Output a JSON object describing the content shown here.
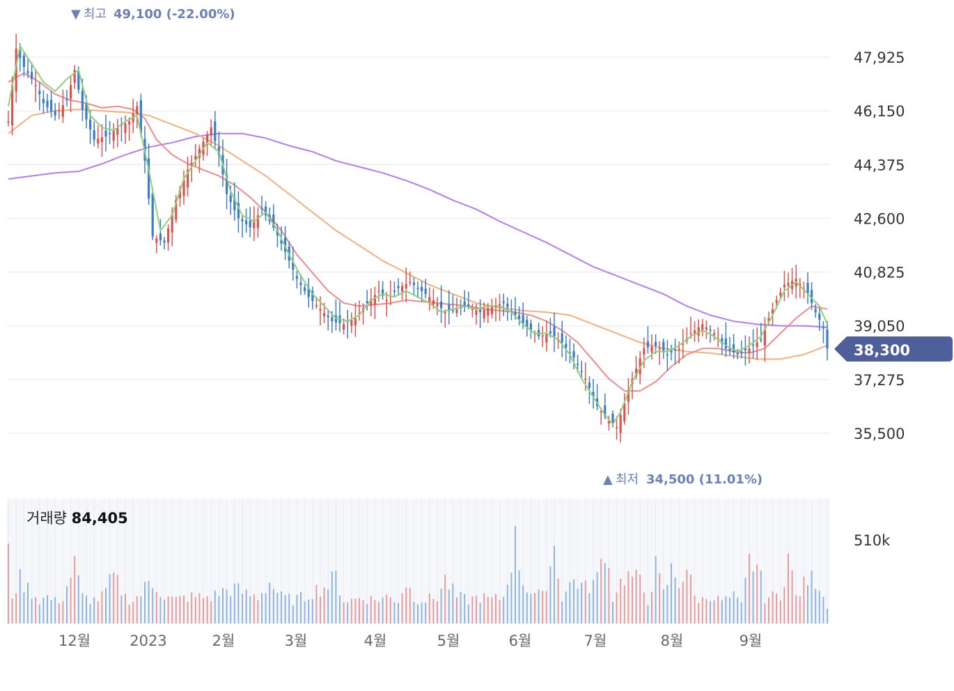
{
  "chart_data": {
    "type": "candlestick",
    "price_axis": {
      "ticks": [
        "47,925",
        "46,150",
        "44,375",
        "42,600",
        "40,825",
        "39,050",
        "37,275",
        "35,500"
      ],
      "ylim": [
        34200,
        49500
      ]
    },
    "current_price": {
      "label": "38,300",
      "value": 38300,
      "color": "#4e5f9c"
    },
    "high_marker": {
      "symbol": "▼",
      "word": "최고",
      "value": "49,100 (-22.00%)",
      "price": 49100
    },
    "low_marker": {
      "symbol": "▲",
      "word": "최저",
      "value": "34,500 (11.01%)",
      "price": 34500
    },
    "x_axis": {
      "labels": [
        "12월",
        "2023",
        "2월",
        "3월",
        "4월",
        "5월",
        "6월",
        "7월",
        "8월",
        "9월"
      ]
    },
    "volume": {
      "title": "거래량",
      "value": "84,405",
      "max_label": "510k",
      "max": 510000
    },
    "colors": {
      "up": "#d9534f",
      "down": "#3b7bc8",
      "ma5": "#8fd07a",
      "ma20": "#f08a8a",
      "ma60": "#f2b07a",
      "ma120": "#b57cf0"
    },
    "anchors": {
      "close": [
        [
          0,
          45800
        ],
        [
          2,
          48200
        ],
        [
          4,
          47600
        ],
        [
          7,
          47000
        ],
        [
          9,
          46400
        ],
        [
          12,
          46000
        ],
        [
          15,
          46500
        ],
        [
          17,
          47500
        ],
        [
          19,
          46200
        ],
        [
          22,
          45200
        ],
        [
          25,
          45300
        ],
        [
          28,
          45600
        ],
        [
          31,
          45800
        ],
        [
          33,
          46300
        ],
        [
          35,
          44500
        ],
        [
          37,
          42000
        ],
        [
          40,
          41800
        ],
        [
          43,
          43200
        ],
        [
          46,
          44200
        ],
        [
          49,
          44900
        ],
        [
          52,
          45600
        ],
        [
          54,
          44700
        ],
        [
          56,
          43400
        ],
        [
          59,
          42600
        ],
        [
          62,
          42300
        ],
        [
          65,
          42900
        ],
        [
          68,
          42300
        ],
        [
          71,
          41500
        ],
        [
          74,
          40600
        ],
        [
          77,
          40000
        ],
        [
          80,
          39600
        ],
        [
          83,
          39200
        ],
        [
          86,
          39100
        ],
        [
          89,
          39300
        ],
        [
          92,
          39800
        ],
        [
          95,
          40200
        ],
        [
          97,
          39900
        ],
        [
          100,
          40300
        ],
        [
          103,
          40500
        ],
        [
          106,
          40200
        ],
        [
          109,
          39900
        ],
        [
          112,
          39500
        ],
        [
          115,
          39600
        ],
        [
          118,
          39700
        ],
        [
          121,
          39500
        ],
        [
          124,
          39700
        ],
        [
          127,
          39800
        ],
        [
          130,
          39400
        ],
        [
          133,
          39000
        ],
        [
          136,
          38700
        ],
        [
          139,
          38800
        ],
        [
          142,
          38500
        ],
        [
          145,
          38000
        ],
        [
          148,
          37300
        ],
        [
          151,
          36400
        ],
        [
          154,
          35900
        ],
        [
          156,
          35700
        ],
        [
          158,
          36500
        ],
        [
          160,
          37300
        ],
        [
          163,
          38300
        ],
        [
          166,
          38400
        ],
        [
          169,
          38100
        ],
        [
          172,
          38300
        ],
        [
          175,
          38800
        ],
        [
          178,
          39100
        ],
        [
          181,
          38800
        ],
        [
          184,
          38300
        ],
        [
          187,
          38100
        ],
        [
          190,
          38300
        ],
        [
          193,
          38600
        ],
        [
          195,
          39300
        ],
        [
          197,
          39900
        ],
        [
          199,
          40400
        ],
        [
          202,
          40600
        ],
        [
          205,
          40100
        ],
        [
          207,
          39500
        ],
        [
          209,
          39000
        ],
        [
          210,
          38300
        ]
      ],
      "ma5": [
        [
          0,
          46300
        ],
        [
          3,
          48300
        ],
        [
          6,
          47700
        ],
        [
          9,
          47100
        ],
        [
          12,
          46800
        ],
        [
          15,
          47200
        ],
        [
          18,
          47500
        ],
        [
          21,
          46000
        ],
        [
          24,
          45600
        ],
        [
          27,
          45500
        ],
        [
          30,
          45800
        ],
        [
          33,
          46000
        ],
        [
          36,
          44200
        ],
        [
          39,
          42200
        ],
        [
          42,
          42700
        ],
        [
          45,
          43900
        ],
        [
          48,
          44500
        ],
        [
          51,
          45100
        ],
        [
          54,
          44800
        ],
        [
          57,
          43500
        ],
        [
          60,
          42700
        ],
        [
          63,
          42500
        ],
        [
          66,
          42800
        ],
        [
          69,
          42200
        ],
        [
          72,
          41400
        ],
        [
          75,
          40700
        ],
        [
          78,
          40100
        ],
        [
          81,
          39700
        ],
        [
          84,
          39300
        ],
        [
          87,
          39200
        ],
        [
          90,
          39400
        ],
        [
          93,
          39900
        ],
        [
          96,
          40100
        ],
        [
          99,
          40000
        ],
        [
          102,
          40200
        ],
        [
          105,
          40000
        ],
        [
          108,
          39800
        ],
        [
          111,
          39500
        ],
        [
          114,
          39600
        ],
        [
          117,
          39700
        ],
        [
          120,
          39600
        ],
        [
          123,
          39700
        ],
        [
          126,
          39700
        ],
        [
          129,
          39500
        ],
        [
          132,
          39100
        ],
        [
          135,
          38800
        ],
        [
          138,
          38800
        ],
        [
          141,
          38600
        ],
        [
          144,
          38100
        ],
        [
          147,
          37300
        ],
        [
          150,
          36700
        ],
        [
          153,
          36100
        ],
        [
          155,
          35800
        ],
        [
          157,
          36200
        ],
        [
          160,
          37200
        ],
        [
          163,
          37900
        ],
        [
          166,
          38200
        ],
        [
          169,
          38200
        ],
        [
          172,
          38400
        ],
        [
          175,
          38700
        ],
        [
          178,
          38900
        ],
        [
          181,
          38700
        ],
        [
          184,
          38400
        ],
        [
          187,
          38200
        ],
        [
          190,
          38400
        ],
        [
          193,
          38700
        ],
        [
          196,
          39400
        ],
        [
          199,
          40200
        ],
        [
          202,
          40500
        ],
        [
          205,
          40100
        ],
        [
          208,
          39700
        ],
        [
          210,
          39100
        ]
      ],
      "ma20": [
        [
          0,
          47100
        ],
        [
          4,
          47400
        ],
        [
          8,
          47100
        ],
        [
          12,
          46700
        ],
        [
          16,
          46500
        ],
        [
          20,
          46400
        ],
        [
          24,
          46250
        ],
        [
          28,
          46300
        ],
        [
          32,
          46200
        ],
        [
          35,
          45900
        ],
        [
          38,
          45200
        ],
        [
          42,
          44700
        ],
        [
          46,
          44400
        ],
        [
          50,
          44200
        ],
        [
          54,
          44000
        ],
        [
          58,
          43700
        ],
        [
          62,
          43300
        ],
        [
          66,
          42800
        ],
        [
          70,
          42200
        ],
        [
          74,
          41400
        ],
        [
          78,
          40800
        ],
        [
          82,
          40200
        ],
        [
          86,
          39800
        ],
        [
          90,
          39700
        ],
        [
          94,
          39750
        ],
        [
          98,
          39800
        ],
        [
          102,
          39900
        ],
        [
          106,
          39850
        ],
        [
          110,
          39800
        ],
        [
          114,
          39750
        ],
        [
          118,
          39700
        ],
        [
          122,
          39600
        ],
        [
          126,
          39550
        ],
        [
          130,
          39500
        ],
        [
          134,
          39400
        ],
        [
          138,
          39200
        ],
        [
          142,
          38900
        ],
        [
          146,
          38500
        ],
        [
          150,
          37900
        ],
        [
          154,
          37300
        ],
        [
          158,
          36900
        ],
        [
          162,
          36900
        ],
        [
          166,
          37200
        ],
        [
          170,
          37700
        ],
        [
          174,
          38100
        ],
        [
          178,
          38300
        ],
        [
          182,
          38300
        ],
        [
          186,
          38200
        ],
        [
          190,
          38150
        ],
        [
          194,
          38300
        ],
        [
          198,
          38800
        ],
        [
          202,
          39300
        ],
        [
          206,
          39700
        ],
        [
          210,
          39600
        ]
      ],
      "ma60": [
        [
          0,
          45400
        ],
        [
          6,
          46000
        ],
        [
          12,
          46150
        ],
        [
          18,
          46200
        ],
        [
          24,
          46150
        ],
        [
          30,
          46100
        ],
        [
          36,
          46000
        ],
        [
          42,
          45700
        ],
        [
          48,
          45400
        ],
        [
          54,
          45000
        ],
        [
          60,
          44500
        ],
        [
          66,
          44000
        ],
        [
          72,
          43400
        ],
        [
          78,
          42800
        ],
        [
          84,
          42200
        ],
        [
          90,
          41700
        ],
        [
          96,
          41200
        ],
        [
          102,
          40800
        ],
        [
          108,
          40400
        ],
        [
          114,
          40100
        ],
        [
          120,
          39800
        ],
        [
          126,
          39650
        ],
        [
          132,
          39550
        ],
        [
          138,
          39500
        ],
        [
          144,
          39400
        ],
        [
          150,
          39100
        ],
        [
          156,
          38800
        ],
        [
          162,
          38500
        ],
        [
          168,
          38300
        ],
        [
          174,
          38200
        ],
        [
          180,
          38150
        ],
        [
          186,
          38050
        ],
        [
          192,
          37950
        ],
        [
          198,
          37950
        ],
        [
          204,
          38100
        ],
        [
          210,
          38400
        ]
      ],
      "ma120": [
        [
          0,
          43900
        ],
        [
          6,
          44000
        ],
        [
          12,
          44100
        ],
        [
          18,
          44150
        ],
        [
          24,
          44400
        ],
        [
          30,
          44700
        ],
        [
          36,
          44950
        ],
        [
          42,
          45100
        ],
        [
          48,
          45300
        ],
        [
          54,
          45400
        ],
        [
          60,
          45400
        ],
        [
          66,
          45250
        ],
        [
          72,
          45000
        ],
        [
          78,
          44800
        ],
        [
          84,
          44500
        ],
        [
          90,
          44300
        ],
        [
          96,
          44100
        ],
        [
          102,
          43850
        ],
        [
          108,
          43550
        ],
        [
          114,
          43200
        ],
        [
          120,
          42900
        ],
        [
          126,
          42500
        ],
        [
          132,
          42150
        ],
        [
          138,
          41800
        ],
        [
          144,
          41400
        ],
        [
          150,
          41000
        ],
        [
          156,
          40700
        ],
        [
          162,
          40400
        ],
        [
          168,
          40100
        ],
        [
          174,
          39700
        ],
        [
          180,
          39400
        ],
        [
          186,
          39200
        ],
        [
          192,
          39100
        ],
        [
          198,
          39050
        ],
        [
          204,
          39050
        ],
        [
          210,
          39000
        ]
      ]
    },
    "vol_anchors": [
      [
        0,
        230
      ],
      [
        1,
        100
      ],
      [
        3,
        150
      ],
      [
        5,
        120
      ],
      [
        8,
        80
      ],
      [
        10,
        90
      ],
      [
        12,
        75
      ],
      [
        14,
        90
      ],
      [
        17,
        200
      ],
      [
        19,
        90
      ],
      [
        22,
        80
      ],
      [
        24,
        90
      ],
      [
        27,
        160
      ],
      [
        30,
        90
      ],
      [
        32,
        80
      ],
      [
        34,
        100
      ],
      [
        36,
        140
      ],
      [
        38,
        130
      ],
      [
        40,
        90
      ],
      [
        43,
        80
      ],
      [
        46,
        90
      ],
      [
        49,
        90
      ],
      [
        52,
        90
      ],
      [
        55,
        110
      ],
      [
        58,
        120
      ],
      [
        61,
        100
      ],
      [
        64,
        90
      ],
      [
        67,
        140
      ],
      [
        70,
        90
      ],
      [
        73,
        80
      ],
      [
        76,
        90
      ],
      [
        78,
        110
      ],
      [
        80,
        120
      ],
      [
        82,
        130
      ],
      [
        84,
        160
      ],
      [
        86,
        80
      ],
      [
        88,
        80
      ],
      [
        91,
        90
      ],
      [
        94,
        80
      ],
      [
        97,
        90
      ],
      [
        100,
        80
      ],
      [
        102,
        140
      ],
      [
        104,
        90
      ],
      [
        107,
        80
      ],
      [
        110,
        90
      ],
      [
        112,
        150
      ],
      [
        115,
        90
      ],
      [
        118,
        80
      ],
      [
        121,
        90
      ],
      [
        124,
        80
      ],
      [
        127,
        90
      ],
      [
        130,
        280
      ],
      [
        132,
        140
      ],
      [
        134,
        110
      ],
      [
        137,
        90
      ],
      [
        140,
        260
      ],
      [
        142,
        90
      ],
      [
        145,
        150
      ],
      [
        148,
        120
      ],
      [
        151,
        150
      ],
      [
        153,
        270
      ],
      [
        155,
        90
      ],
      [
        156,
        120
      ],
      [
        158,
        160
      ],
      [
        160,
        160
      ],
      [
        162,
        140
      ],
      [
        164,
        80
      ],
      [
        166,
        190
      ],
      [
        168,
        100
      ],
      [
        170,
        180
      ],
      [
        172,
        140
      ],
      [
        174,
        190
      ],
      [
        176,
        90
      ],
      [
        178,
        80
      ],
      [
        180,
        100
      ],
      [
        182,
        80
      ],
      [
        184,
        80
      ],
      [
        186,
        90
      ],
      [
        188,
        60
      ],
      [
        190,
        210
      ],
      [
        192,
        200
      ],
      [
        194,
        90
      ],
      [
        196,
        90
      ],
      [
        198,
        100
      ],
      [
        200,
        230
      ],
      [
        202,
        90
      ],
      [
        205,
        150
      ],
      [
        207,
        150
      ],
      [
        209,
        110
      ],
      [
        210,
        50
      ]
    ]
  }
}
